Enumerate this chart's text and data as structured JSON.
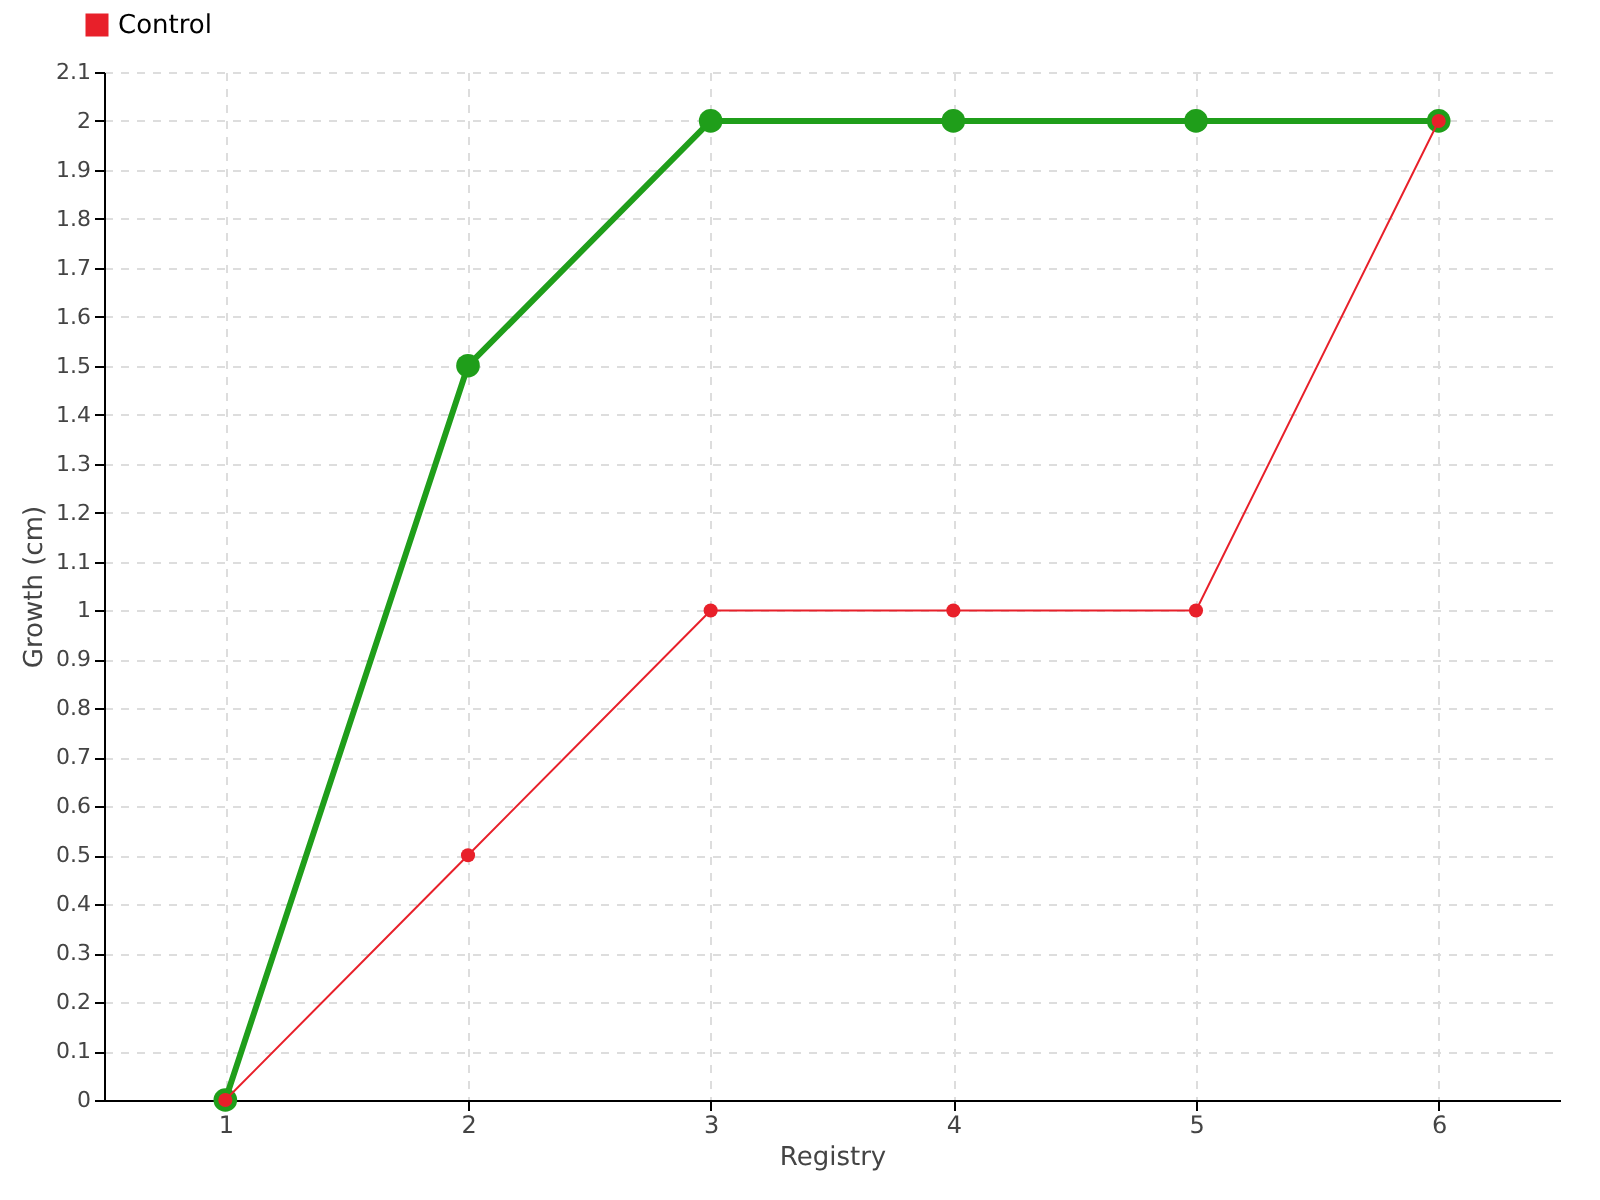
{
  "chart_data": {
    "type": "line",
    "xlabel": "Registry",
    "ylabel": "Growth (cm)",
    "x": [
      1,
      2,
      3,
      4,
      5,
      6
    ],
    "xlim": [
      0.5,
      6.5
    ],
    "xticks": [
      1,
      2,
      3,
      4,
      5,
      6
    ],
    "ylim": [
      0,
      2.1
    ],
    "yticks": [
      0,
      0.1,
      0.2,
      0.3,
      0.4,
      0.5,
      0.6,
      0.7,
      0.8,
      0.9,
      1,
      1.1,
      1.2,
      1.3,
      1.4,
      1.5,
      1.6,
      1.7,
      1.8,
      1.9,
      2,
      2.1
    ],
    "grid": true,
    "legend": "top left",
    "marker": "circle",
    "line_style": "solid",
    "series": [
      {
        "color": "#1f9e1a",
        "values": [
          0,
          1.5,
          2,
          2,
          2,
          2
        ]
      },
      {
        "name": "Control",
        "color": "#e8202a",
        "values": [
          0,
          0.5,
          1,
          1,
          1,
          2
        ]
      }
    ]
  }
}
